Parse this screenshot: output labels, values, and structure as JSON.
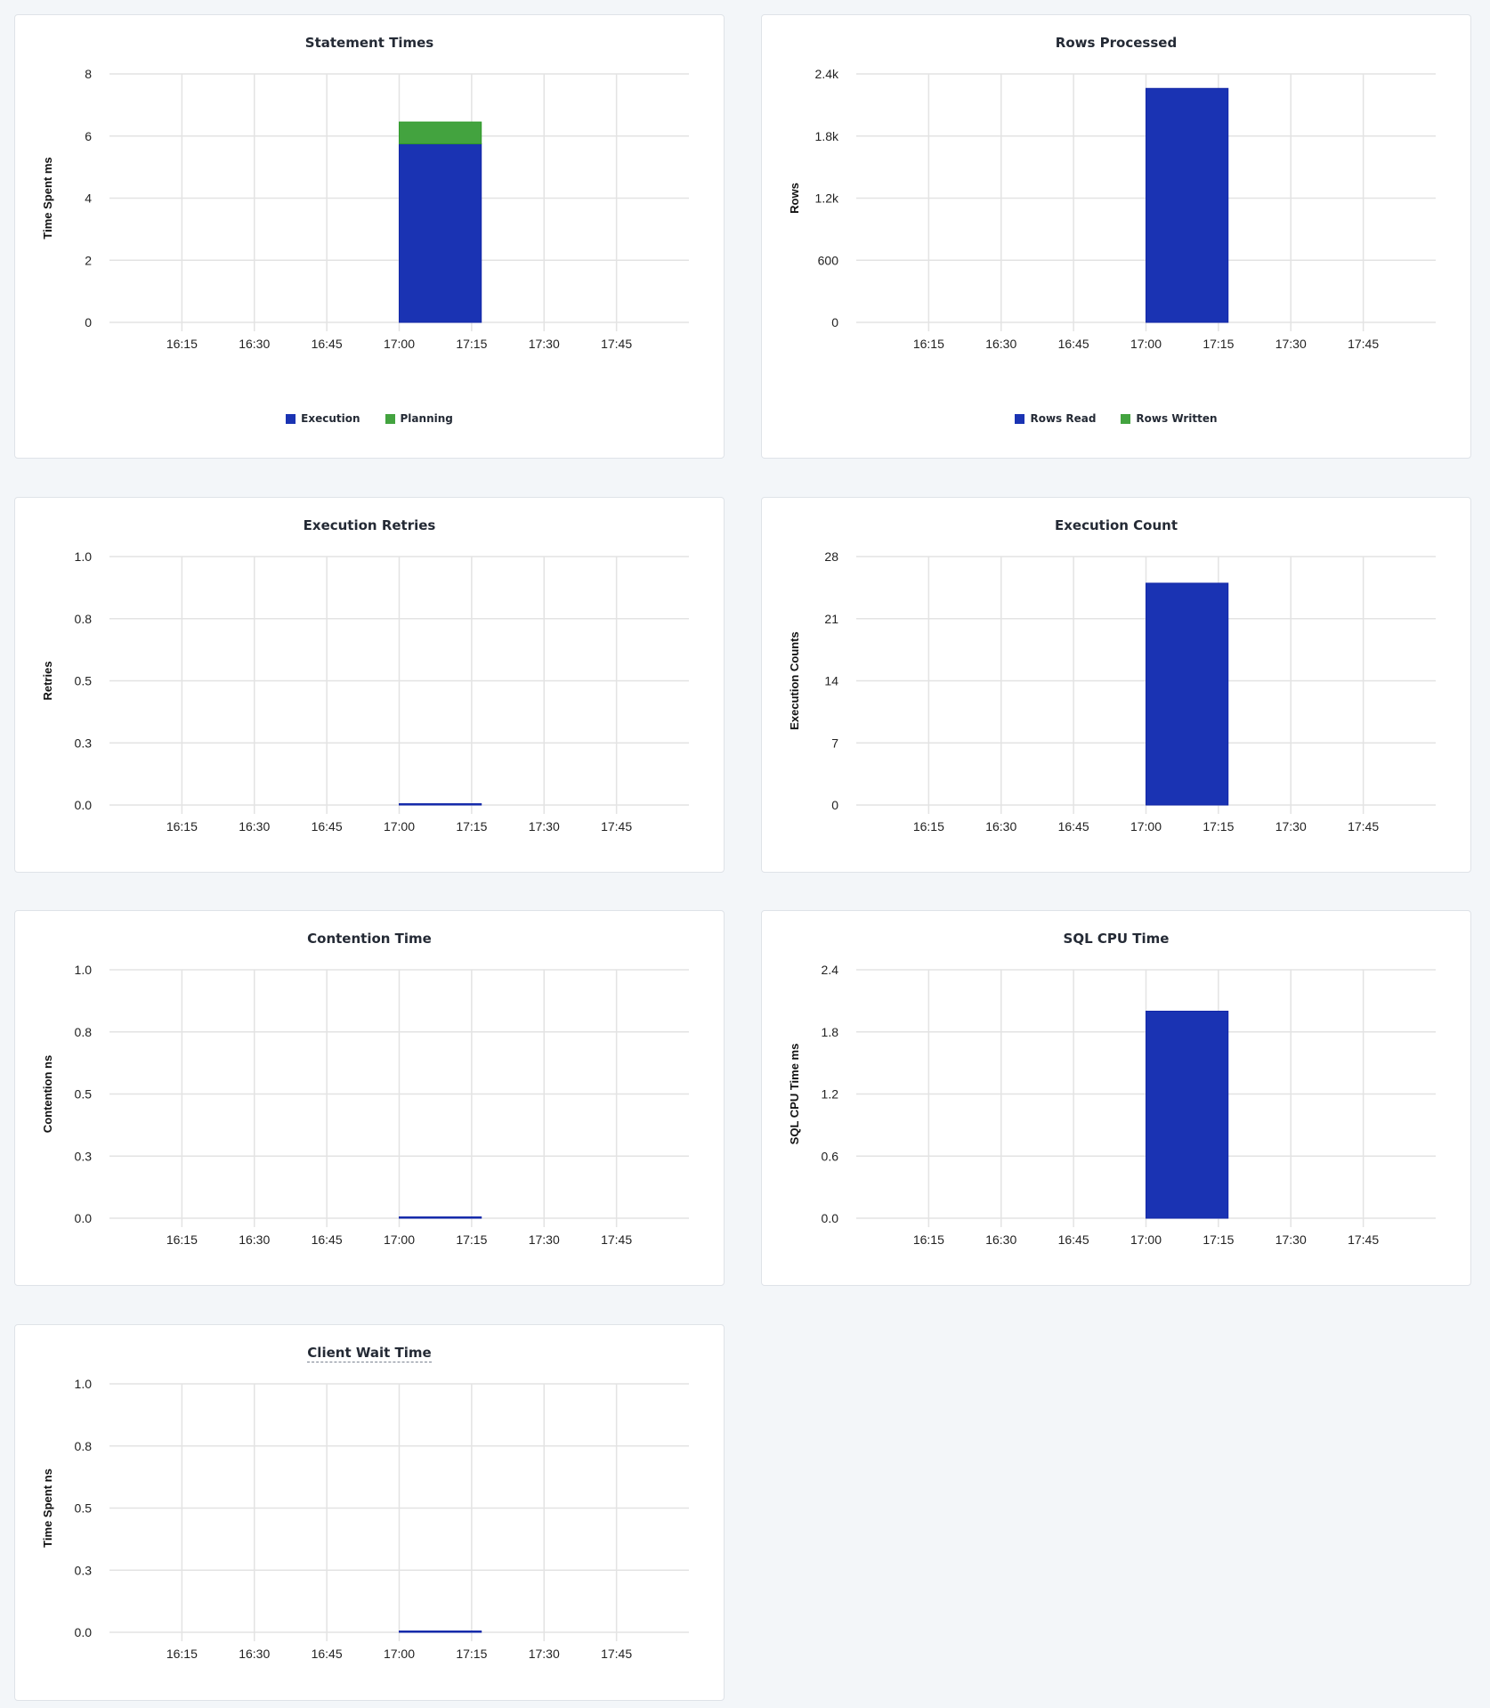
{
  "colors": {
    "execution": "#1a33b3",
    "planning": "#43a33f",
    "grid": "#e3e3e3",
    "title": "#242a35"
  },
  "chart_data": [
    {
      "id": "statement-times",
      "type": "bar",
      "stacked": true,
      "title": "Statement Times",
      "ylabel": "Time Spent ms",
      "ylim": [
        0,
        8
      ],
      "yticks": [
        "0",
        "2",
        "4",
        "6",
        "8"
      ],
      "ytick_values": [
        0,
        2,
        4,
        6,
        8
      ],
      "xlim": [
        "16:00",
        "18:00"
      ],
      "xticks": [
        "16:15",
        "16:30",
        "16:45",
        "17:00",
        "17:15",
        "17:30",
        "17:45"
      ],
      "bars": [
        {
          "start": "17:00",
          "end": "17:17"
        }
      ],
      "series": [
        {
          "name": "Execution",
          "color": "#1a33b3",
          "values": [
            5.75
          ]
        },
        {
          "name": "Planning",
          "color": "#43a33f",
          "values": [
            0.7
          ]
        }
      ],
      "legend": "bottom",
      "grid": true
    },
    {
      "id": "rows-processed",
      "type": "bar",
      "stacked": true,
      "title": "Rows Processed",
      "ylabel": "Rows",
      "ylim": [
        0,
        2400
      ],
      "yticks": [
        "0",
        "600",
        "1.2k",
        "1.8k",
        "2.4k"
      ],
      "ytick_values": [
        0,
        600,
        1200,
        1800,
        2400
      ],
      "xlim": [
        "16:00",
        "18:00"
      ],
      "xticks": [
        "16:15",
        "16:30",
        "16:45",
        "17:00",
        "17:15",
        "17:30",
        "17:45"
      ],
      "bars": [
        {
          "start": "17:00",
          "end": "17:17"
        }
      ],
      "series": [
        {
          "name": "Rows Read",
          "color": "#1a33b3",
          "values": [
            2260
          ]
        },
        {
          "name": "Rows Written",
          "color": "#43a33f",
          "values": [
            0
          ]
        }
      ],
      "legend": "bottom",
      "grid": true
    },
    {
      "id": "execution-retries",
      "type": "bar",
      "title": "Execution Retries",
      "ylabel": "Retries",
      "ylim": [
        0,
        1
      ],
      "yticks": [
        "0.0",
        "0.3",
        "0.5",
        "0.8",
        "1.0"
      ],
      "ytick_values": [
        0,
        0.25,
        0.5,
        0.75,
        1
      ],
      "xlim": [
        "16:00",
        "18:00"
      ],
      "xticks": [
        "16:15",
        "16:30",
        "16:45",
        "17:00",
        "17:15",
        "17:30",
        "17:45"
      ],
      "bars": [
        {
          "start": "17:00",
          "end": "17:17"
        }
      ],
      "series": [
        {
          "color": "#1a33b3",
          "values": [
            0
          ]
        }
      ],
      "grid": true
    },
    {
      "id": "execution-count",
      "type": "bar",
      "title": "Execution Count",
      "ylabel": "Execution Counts",
      "ylim": [
        0,
        28
      ],
      "yticks": [
        "0",
        "7",
        "14",
        "21",
        "28"
      ],
      "ytick_values": [
        0,
        7,
        14,
        21,
        28
      ],
      "xlim": [
        "16:00",
        "18:00"
      ],
      "xticks": [
        "16:15",
        "16:30",
        "16:45",
        "17:00",
        "17:15",
        "17:30",
        "17:45"
      ],
      "bars": [
        {
          "start": "17:00",
          "end": "17:17"
        }
      ],
      "series": [
        {
          "color": "#1a33b3",
          "values": [
            25
          ]
        }
      ],
      "grid": true
    },
    {
      "id": "contention-time",
      "type": "bar",
      "title": "Contention Time",
      "ylabel": "Contention ns",
      "ylim": [
        0,
        1
      ],
      "yticks": [
        "0.0",
        "0.3",
        "0.5",
        "0.8",
        "1.0"
      ],
      "ytick_values": [
        0,
        0.25,
        0.5,
        0.75,
        1
      ],
      "xlim": [
        "16:00",
        "18:00"
      ],
      "xticks": [
        "16:15",
        "16:30",
        "16:45",
        "17:00",
        "17:15",
        "17:30",
        "17:45"
      ],
      "bars": [
        {
          "start": "17:00",
          "end": "17:17"
        }
      ],
      "series": [
        {
          "color": "#1a33b3",
          "values": [
            0
          ]
        }
      ],
      "grid": true
    },
    {
      "id": "sql-cpu-time",
      "type": "bar",
      "title": "SQL CPU Time",
      "ylabel": "SQL CPU Time ms",
      "ylim": [
        0,
        2.4
      ],
      "yticks": [
        "0.0",
        "0.6",
        "1.2",
        "1.8",
        "2.4"
      ],
      "ytick_values": [
        0,
        0.6,
        1.2,
        1.8,
        2.4
      ],
      "xlim": [
        "16:00",
        "18:00"
      ],
      "xticks": [
        "16:15",
        "16:30",
        "16:45",
        "17:00",
        "17:15",
        "17:30",
        "17:45"
      ],
      "bars": [
        {
          "start": "17:00",
          "end": "17:17"
        }
      ],
      "series": [
        {
          "color": "#1a33b3",
          "values": [
            2.0
          ]
        }
      ],
      "grid": true
    },
    {
      "id": "client-wait-time",
      "type": "bar",
      "title": "Client Wait Time",
      "title_has_tooltip": true,
      "ylabel": "Time Spent ns",
      "ylim": [
        0,
        1
      ],
      "yticks": [
        "0.0",
        "0.3",
        "0.5",
        "0.8",
        "1.0"
      ],
      "ytick_values": [
        0,
        0.25,
        0.5,
        0.75,
        1
      ],
      "xlim": [
        "16:00",
        "18:00"
      ],
      "xticks": [
        "16:15",
        "16:30",
        "16:45",
        "17:00",
        "17:15",
        "17:30",
        "17:45"
      ],
      "bars": [
        {
          "start": "17:00",
          "end": "17:17"
        }
      ],
      "series": [
        {
          "color": "#1a33b3",
          "values": [
            0
          ]
        }
      ],
      "grid": true
    }
  ]
}
